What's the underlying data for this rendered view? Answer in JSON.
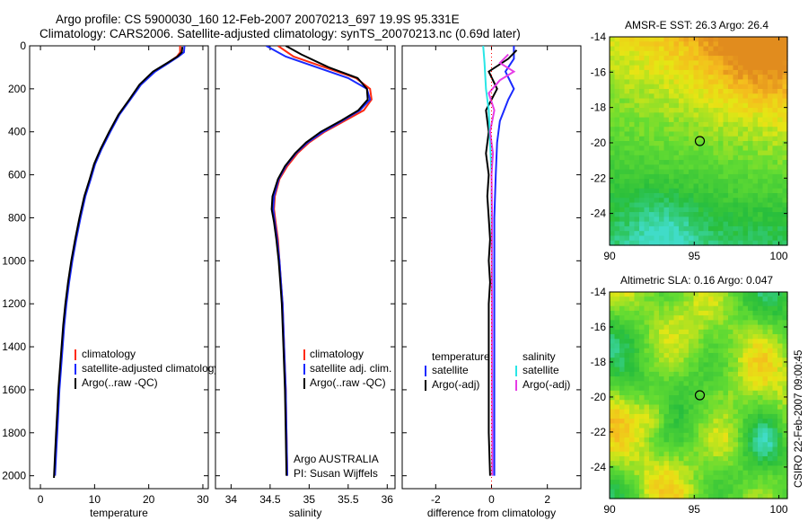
{
  "header": {
    "line1": "Argo profile: CS 5900030_160 12-Feb-2007 20070213_697 19.9S 95.331E",
    "line2": "Climatology: CARS2006. Satellite-adjusted climatology: synTS_20070213.nc (0.69d later)"
  },
  "side_label": "CSIRO 22-Feb-2007 09:00:45",
  "colors": {
    "climatology": "#ff2a10",
    "satellite": "#1a2aff",
    "argo": "#000000",
    "sal_satellite": "#29e6e6",
    "sal_argo": "#e63ce6"
  },
  "chart_data": [
    {
      "type": "line",
      "id": "temperature",
      "xlabel": "temperature",
      "xlim": [
        -2,
        31
      ],
      "xticks": [
        0,
        10,
        20,
        30
      ],
      "ylim": [
        0,
        2060
      ],
      "yticks": [
        0,
        200,
        400,
        600,
        800,
        1000,
        1200,
        1400,
        1600,
        1800,
        2000
      ],
      "y_reversed": true,
      "legend": [
        "climatology",
        "satellite-adjusted climatology",
        "Argo(..raw -QC)"
      ],
      "series": [
        {
          "name": "climatology",
          "color": "#ff2a10",
          "points": [
            [
              25.8,
              0
            ],
            [
              25.8,
              30
            ],
            [
              25.2,
              50
            ],
            [
              23.5,
              80
            ],
            [
              21,
              120
            ],
            [
              18.5,
              180
            ],
            [
              16.5,
              250
            ],
            [
              14.5,
              320
            ],
            [
              12.8,
              400
            ],
            [
              11.2,
              480
            ],
            [
              10,
              550
            ],
            [
              9.2,
              620
            ],
            [
              8.2,
              700
            ],
            [
              7.3,
              800
            ],
            [
              6.5,
              900
            ],
            [
              5.8,
              1000
            ],
            [
              5.2,
              1100
            ],
            [
              4.7,
              1200
            ],
            [
              4.3,
              1300
            ],
            [
              4,
              1400
            ],
            [
              3.7,
              1500
            ],
            [
              3.4,
              1600
            ],
            [
              3.2,
              1700
            ],
            [
              3,
              1800
            ],
            [
              2.8,
              1900
            ],
            [
              2.6,
              2000
            ]
          ]
        },
        {
          "name": "satellite-adjusted climatology",
          "color": "#1a2aff",
          "points": [
            [
              26.6,
              0
            ],
            [
              26.5,
              30
            ],
            [
              25.5,
              50
            ],
            [
              23.7,
              80
            ],
            [
              21.2,
              120
            ],
            [
              18.6,
              180
            ],
            [
              16.6,
              250
            ],
            [
              14.6,
              320
            ],
            [
              12.9,
              400
            ],
            [
              11.3,
              480
            ],
            [
              10.1,
              550
            ],
            [
              9.3,
              620
            ],
            [
              8.3,
              700
            ],
            [
              7.4,
              800
            ],
            [
              6.6,
              900
            ],
            [
              5.9,
              1000
            ],
            [
              5.3,
              1100
            ],
            [
              4.8,
              1200
            ],
            [
              4.4,
              1300
            ],
            [
              4.1,
              1400
            ],
            [
              3.8,
              1500
            ],
            [
              3.5,
              1600
            ],
            [
              3.3,
              1700
            ],
            [
              3.1,
              1800
            ],
            [
              2.9,
              1900
            ],
            [
              2.7,
              2000
            ]
          ]
        },
        {
          "name": "Argo(..raw -QC)",
          "color": "#000000",
          "points": [
            [
              26.2,
              5
            ],
            [
              26.1,
              30
            ],
            [
              25.3,
              50
            ],
            [
              23.4,
              80
            ],
            [
              20.8,
              120
            ],
            [
              18.3,
              180
            ],
            [
              16.4,
              250
            ],
            [
              14.4,
              320
            ],
            [
              12.7,
              400
            ],
            [
              11.1,
              480
            ],
            [
              9.9,
              550
            ],
            [
              9.1,
              620
            ],
            [
              8.1,
              700
            ],
            [
              7.2,
              800
            ],
            [
              6.4,
              900
            ],
            [
              5.7,
              1000
            ],
            [
              5.1,
              1100
            ],
            [
              4.6,
              1200
            ],
            [
              4.2,
              1300
            ],
            [
              3.9,
              1400
            ],
            [
              3.6,
              1500
            ],
            [
              3.3,
              1600
            ],
            [
              3.1,
              1700
            ],
            [
              2.9,
              1800
            ],
            [
              2.7,
              1900
            ],
            [
              2.5,
              2010
            ]
          ]
        }
      ]
    },
    {
      "type": "line",
      "id": "salinity",
      "xlabel": "salinity",
      "xlim": [
        33.8,
        36.1
      ],
      "xticks": [
        34,
        34.5,
        35,
        35.5,
        36
      ],
      "ylim": [
        0,
        2060
      ],
      "y_reversed": true,
      "legend": [
        "climatology",
        "satellite adj. clim.",
        "Argo(..raw -QC)"
      ],
      "annotation": [
        "Argo AUSTRALIA",
        "PI: Susan Wijffels"
      ],
      "series": [
        {
          "name": "climatology",
          "color": "#ff2a10",
          "points": [
            [
              34.6,
              0
            ],
            [
              34.8,
              50
            ],
            [
              35.2,
              100
            ],
            [
              35.6,
              150
            ],
            [
              35.78,
              200
            ],
            [
              35.8,
              250
            ],
            [
              35.7,
              300
            ],
            [
              35.45,
              350
            ],
            [
              35.2,
              400
            ],
            [
              35,
              450
            ],
            [
              34.85,
              500
            ],
            [
              34.72,
              560
            ],
            [
              34.62,
              620
            ],
            [
              34.56,
              700
            ],
            [
              34.55,
              760
            ],
            [
              34.57,
              820
            ],
            [
              34.6,
              900
            ],
            [
              34.62,
              1000
            ],
            [
              34.64,
              1100
            ],
            [
              34.66,
              1200
            ],
            [
              34.68,
              1400
            ],
            [
              34.7,
              1600
            ],
            [
              34.71,
              1800
            ],
            [
              34.72,
              2000
            ]
          ]
        },
        {
          "name": "satellite adj. clim.",
          "color": "#1a2aff",
          "points": [
            [
              34.45,
              0
            ],
            [
              34.7,
              50
            ],
            [
              35.1,
              100
            ],
            [
              35.5,
              150
            ],
            [
              35.74,
              200
            ],
            [
              35.78,
              250
            ],
            [
              35.65,
              300
            ],
            [
              35.42,
              350
            ],
            [
              35.18,
              400
            ],
            [
              34.98,
              450
            ],
            [
              34.83,
              500
            ],
            [
              34.7,
              560
            ],
            [
              34.61,
              620
            ],
            [
              34.55,
              700
            ],
            [
              34.54,
              760
            ],
            [
              34.56,
              820
            ],
            [
              34.59,
              900
            ],
            [
              34.62,
              1000
            ],
            [
              34.64,
              1100
            ],
            [
              34.66,
              1200
            ],
            [
              34.68,
              1400
            ],
            [
              34.7,
              1600
            ],
            [
              34.71,
              1800
            ],
            [
              34.72,
              2000
            ]
          ]
        },
        {
          "name": "Argo(..raw -QC)",
          "color": "#000000",
          "points": [
            [
              34.7,
              0
            ],
            [
              34.9,
              40
            ],
            [
              35.25,
              100
            ],
            [
              35.62,
              150
            ],
            [
              35.74,
              200
            ],
            [
              35.75,
              250
            ],
            [
              35.63,
              300
            ],
            [
              35.4,
              350
            ],
            [
              35.15,
              400
            ],
            [
              34.96,
              450
            ],
            [
              34.82,
              500
            ],
            [
              34.69,
              560
            ],
            [
              34.6,
              620
            ],
            [
              34.53,
              700
            ],
            [
              34.52,
              760
            ],
            [
              34.55,
              820
            ],
            [
              34.58,
              900
            ],
            [
              34.61,
              1000
            ],
            [
              34.63,
              1100
            ],
            [
              34.65,
              1200
            ],
            [
              34.67,
              1400
            ],
            [
              34.69,
              1600
            ],
            [
              34.7,
              1800
            ],
            [
              34.71,
              2000
            ]
          ]
        }
      ]
    },
    {
      "type": "line",
      "id": "difference",
      "xlabel": "difference from climatology",
      "xlim": [
        -3.2,
        3.2
      ],
      "xticks": [
        -2,
        0,
        2
      ],
      "ylim": [
        0,
        2060
      ],
      "y_reversed": true,
      "legend_left_title": "temperature",
      "legend_left": [
        "satellite",
        "Argo(-adj)"
      ],
      "legend_right_title": "salinity",
      "legend_right": [
        "satellite",
        "Argo(-adj)"
      ],
      "series": [
        {
          "name": "temperature satellite",
          "color": "#1a2aff",
          "points": [
            [
              0.8,
              0
            ],
            [
              0.8,
              60
            ],
            [
              0.5,
              120
            ],
            [
              0.8,
              200
            ],
            [
              0.6,
              250
            ],
            [
              0.3,
              350
            ],
            [
              0.2,
              450
            ],
            [
              0.15,
              600
            ],
            [
              0.1,
              800
            ],
            [
              0.1,
              1000
            ],
            [
              0.1,
              1200
            ],
            [
              0.1,
              1400
            ],
            [
              0.1,
              1600
            ],
            [
              0.1,
              1800
            ],
            [
              0.1,
              2000
            ]
          ]
        },
        {
          "name": "temperature Argo(-adj)",
          "color": "#000000",
          "points": [
            [
              0.9,
              20
            ],
            [
              0.6,
              60
            ],
            [
              -0.1,
              120
            ],
            [
              0.2,
              200
            ],
            [
              -0.2,
              300
            ],
            [
              -0.1,
              400
            ],
            [
              -0.2,
              500
            ],
            [
              -0.1,
              600
            ],
            [
              -0.15,
              700
            ],
            [
              -0.1,
              800
            ],
            [
              -0.05,
              900
            ],
            [
              -0.1,
              1000
            ],
            [
              -0.05,
              1100
            ],
            [
              -0.1,
              1200
            ],
            [
              -0.1,
              1400
            ],
            [
              -0.1,
              1600
            ],
            [
              -0.1,
              1800
            ],
            [
              -0.05,
              2000
            ]
          ]
        },
        {
          "name": "salinity satellite",
          "color": "#29e6e6",
          "points": [
            [
              -0.3,
              0
            ],
            [
              -0.25,
              80
            ],
            [
              -0.2,
              200
            ],
            [
              -0.1,
              300
            ],
            [
              -0.05,
              450
            ],
            [
              0,
              600
            ],
            [
              0,
              800
            ],
            [
              0.02,
              1000
            ],
            [
              0.02,
              1200
            ],
            [
              0.02,
              1400
            ],
            [
              0.03,
              1600
            ],
            [
              0.03,
              1800
            ],
            [
              0.03,
              2000
            ]
          ]
        },
        {
          "name": "salinity Argo(-adj)",
          "color": "#e63ce6",
          "points": [
            [
              0.6,
              40
            ],
            [
              0.3,
              80
            ],
            [
              0.8,
              120
            ],
            [
              0.3,
              160
            ],
            [
              -0.1,
              220
            ],
            [
              0.1,
              300
            ],
            [
              -0.05,
              400
            ],
            [
              0.05,
              500
            ],
            [
              0,
              600
            ],
            [
              0.02,
              800
            ],
            [
              0.01,
              1000
            ],
            [
              0.02,
              1200
            ],
            [
              0.02,
              1400
            ],
            [
              0.02,
              1600
            ],
            [
              0.03,
              1800
            ],
            [
              0.03,
              2000
            ]
          ]
        }
      ]
    },
    {
      "type": "heatmap",
      "id": "sst",
      "title": "AMSR-E SST: 26.3 Argo: 26.4",
      "xlim": [
        90,
        100.5
      ],
      "ylim": [
        -25.8,
        -14
      ],
      "xticks": [
        90,
        95,
        100
      ],
      "yticks": [
        -14,
        -16,
        -18,
        -20,
        -22,
        -24
      ],
      "marker": [
        95.33,
        -19.9
      ]
    },
    {
      "type": "heatmap",
      "id": "sla",
      "title": "Altimetric SLA: 0.16 Argo: 0.047",
      "xlim": [
        90,
        100.5
      ],
      "ylim": [
        -25.8,
        -14
      ],
      "xticks": [
        90,
        95,
        100
      ],
      "yticks": [
        -14,
        -16,
        -18,
        -20,
        -22,
        -24
      ],
      "marker": [
        95.33,
        -19.9
      ]
    }
  ]
}
